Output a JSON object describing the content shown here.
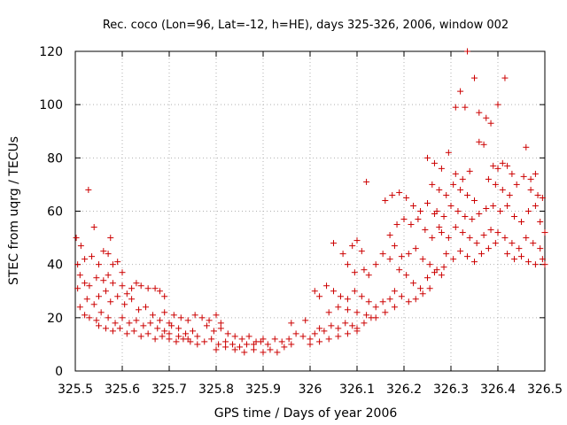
{
  "chart_data": {
    "type": "scatter",
    "title": "Rec. coco (Lon=96, Lat=-12, h=HE), days 325-326, 2006, window 002",
    "xlabel": "GPS time / Days of year 2006",
    "ylabel": "STEC from uqrg / TECUs",
    "xlim": [
      325.5,
      326.5
    ],
    "ylim": [
      0,
      120
    ],
    "x_ticks": [
      325.5,
      325.6,
      325.7,
      325.8,
      325.9,
      326.0,
      326.1,
      326.2,
      326.3,
      326.4,
      326.5
    ],
    "x_tick_labels": [
      "325.5",
      "325.6",
      "325.7",
      "325.8",
      "325.9",
      "326",
      "326.1",
      "326.2",
      "326.3",
      "326.4",
      "326.5"
    ],
    "y_ticks": [
      0,
      20,
      40,
      60,
      80,
      100,
      120
    ],
    "y_tick_labels": [
      "0",
      "20",
      "40",
      "60",
      "80",
      "100",
      "120"
    ],
    "grid": true,
    "marker": "+",
    "color": "#cc0000",
    "series": [
      {
        "points": [
          [
            325.502,
            50.0
          ],
          [
            325.512,
            47.0
          ],
          [
            325.505,
            40.0
          ],
          [
            325.51,
            36.0
          ],
          [
            325.505,
            31.0
          ],
          [
            325.51,
            24.0
          ],
          [
            325.52,
            21.0
          ],
          [
            325.528,
            68.0
          ],
          [
            325.54,
            54.0
          ],
          [
            325.52,
            42.0
          ],
          [
            325.535,
            43.0
          ],
          [
            325.55,
            40.0
          ],
          [
            325.56,
            45.0
          ],
          [
            325.57,
            44.0
          ],
          [
            325.575,
            50.0
          ],
          [
            325.58,
            40.0
          ],
          [
            325.59,
            41.0
          ],
          [
            325.6,
            37.0
          ],
          [
            325.52,
            33.0
          ],
          [
            325.53,
            32.0
          ],
          [
            325.545,
            35.0
          ],
          [
            325.56,
            34.0
          ],
          [
            325.57,
            36.0
          ],
          [
            325.58,
            33.0
          ],
          [
            325.6,
            32.0
          ],
          [
            325.61,
            29.0
          ],
          [
            325.62,
            31.0
          ],
          [
            325.63,
            33.0
          ],
          [
            325.64,
            32.0
          ],
          [
            325.655,
            31.0
          ],
          [
            325.67,
            31.0
          ],
          [
            325.68,
            30.0
          ],
          [
            325.69,
            28.0
          ],
          [
            325.525,
            27.0
          ],
          [
            325.54,
            25.0
          ],
          [
            325.55,
            28.0
          ],
          [
            325.565,
            30.0
          ],
          [
            325.575,
            26.0
          ],
          [
            325.59,
            28.0
          ],
          [
            325.605,
            25.0
          ],
          [
            325.62,
            27.0
          ],
          [
            325.635,
            23.0
          ],
          [
            325.65,
            24.0
          ],
          [
            325.665,
            21.0
          ],
          [
            325.68,
            19.0
          ],
          [
            325.7,
            18.0
          ],
          [
            325.53,
            20.0
          ],
          [
            325.545,
            19.0
          ],
          [
            325.555,
            22.0
          ],
          [
            325.57,
            20.0
          ],
          [
            325.585,
            18.0
          ],
          [
            325.6,
            20.0
          ],
          [
            325.615,
            18.0
          ],
          [
            325.63,
            19.0
          ],
          [
            325.645,
            17.0
          ],
          [
            325.66,
            18.0
          ],
          [
            325.675,
            16.0
          ],
          [
            325.69,
            15.0
          ],
          [
            325.705,
            17.0
          ],
          [
            325.72,
            16.0
          ],
          [
            325.735,
            14.0
          ],
          [
            325.75,
            15.0
          ],
          [
            325.55,
            17.0
          ],
          [
            325.565,
            16.0
          ],
          [
            325.58,
            15.0
          ],
          [
            325.595,
            16.0
          ],
          [
            325.61,
            14.0
          ],
          [
            325.625,
            15.0
          ],
          [
            325.64,
            13.0
          ],
          [
            325.655,
            14.0
          ],
          [
            325.67,
            12.0
          ],
          [
            325.685,
            13.0
          ],
          [
            325.7,
            12.0
          ],
          [
            325.715,
            11.0
          ],
          [
            325.73,
            12.0
          ],
          [
            325.745,
            11.0
          ],
          [
            325.76,
            10.0
          ],
          [
            325.69,
            22.0
          ],
          [
            325.71,
            21.0
          ],
          [
            325.725,
            20.0
          ],
          [
            325.74,
            19.0
          ],
          [
            325.755,
            21.0
          ],
          [
            325.77,
            20.0
          ],
          [
            325.785,
            19.0
          ],
          [
            325.8,
            21.0
          ],
          [
            325.81,
            18.0
          ],
          [
            325.7,
            14.0
          ],
          [
            325.72,
            13.0
          ],
          [
            325.74,
            12.0
          ],
          [
            325.76,
            13.0
          ],
          [
            325.775,
            11.0
          ],
          [
            325.79,
            12.0
          ],
          [
            325.805,
            10.0
          ],
          [
            325.82,
            11.0
          ],
          [
            325.835,
            10.0
          ],
          [
            325.85,
            9.0
          ],
          [
            325.865,
            10.0
          ],
          [
            325.78,
            17.0
          ],
          [
            325.795,
            15.0
          ],
          [
            325.81,
            16.0
          ],
          [
            325.825,
            14.0
          ],
          [
            325.84,
            13.0
          ],
          [
            325.855,
            12.0
          ],
          [
            325.87,
            13.0
          ],
          [
            325.885,
            11.0
          ],
          [
            325.9,
            12.0
          ],
          [
            325.8,
            8.0
          ],
          [
            325.82,
            9.0
          ],
          [
            325.84,
            8.0
          ],
          [
            325.86,
            7.0
          ],
          [
            325.88,
            8.0
          ],
          [
            325.9,
            7.0
          ],
          [
            325.915,
            8.0
          ],
          [
            325.93,
            7.0
          ],
          [
            325.945,
            9.0
          ],
          [
            325.96,
            10.0
          ],
          [
            325.88,
            10.0
          ],
          [
            325.895,
            11.0
          ],
          [
            325.91,
            10.0
          ],
          [
            325.925,
            12.0
          ],
          [
            325.94,
            11.0
          ],
          [
            325.955,
            12.0
          ],
          [
            325.97,
            14.0
          ],
          [
            325.985,
            13.0
          ],
          [
            325.96,
            18.0
          ],
          [
            325.99,
            19.0
          ],
          [
            326.0,
            12.0
          ],
          [
            326.01,
            14.0
          ],
          [
            326.02,
            16.0
          ],
          [
            326.03,
            15.0
          ],
          [
            326.045,
            17.0
          ],
          [
            326.06,
            16.0
          ],
          [
            326.075,
            18.0
          ],
          [
            326.09,
            17.0
          ],
          [
            326.1,
            16.0
          ],
          [
            326.115,
            18.0
          ],
          [
            326.13,
            20.0
          ],
          [
            326.0,
            10.0
          ],
          [
            326.02,
            11.0
          ],
          [
            326.04,
            12.0
          ],
          [
            326.06,
            13.0
          ],
          [
            326.08,
            14.0
          ],
          [
            326.1,
            15.0
          ],
          [
            326.05,
            48.0
          ],
          [
            326.07,
            44.0
          ],
          [
            326.09,
            47.0
          ],
          [
            326.1,
            49.0
          ],
          [
            326.11,
            45.0
          ],
          [
            326.08,
            40.0
          ],
          [
            326.095,
            37.0
          ],
          [
            326.115,
            38.0
          ],
          [
            326.125,
            36.0
          ],
          [
            326.14,
            40.0
          ],
          [
            326.155,
            44.0
          ],
          [
            326.17,
            42.0
          ],
          [
            326.01,
            30.0
          ],
          [
            326.02,
            28.0
          ],
          [
            326.035,
            32.0
          ],
          [
            326.05,
            30.0
          ],
          [
            326.065,
            28.0
          ],
          [
            326.08,
            27.0
          ],
          [
            326.095,
            30.0
          ],
          [
            326.11,
            28.0
          ],
          [
            326.125,
            26.0
          ],
          [
            326.14,
            24.0
          ],
          [
            326.155,
            26.0
          ],
          [
            326.17,
            27.0
          ],
          [
            326.04,
            22.0
          ],
          [
            326.06,
            24.0
          ],
          [
            326.08,
            23.0
          ],
          [
            326.1,
            22.0
          ],
          [
            326.12,
            21.0
          ],
          [
            326.14,
            20.0
          ],
          [
            326.16,
            22.0
          ],
          [
            326.18,
            24.0
          ],
          [
            326.12,
            71.0
          ],
          [
            326.16,
            64.0
          ],
          [
            326.175,
            66.0
          ],
          [
            326.19,
            67.0
          ],
          [
            326.205,
            65.0
          ],
          [
            326.22,
            62.0
          ],
          [
            326.235,
            60.0
          ],
          [
            326.25,
            63.0
          ],
          [
            326.265,
            59.0
          ],
          [
            326.17,
            51.0
          ],
          [
            326.185,
            55.0
          ],
          [
            326.2,
            57.0
          ],
          [
            326.215,
            55.0
          ],
          [
            326.23,
            57.0
          ],
          [
            326.245,
            53.0
          ],
          [
            326.26,
            50.0
          ],
          [
            326.275,
            54.0
          ],
          [
            326.18,
            47.0
          ],
          [
            326.195,
            43.0
          ],
          [
            326.21,
            44.0
          ],
          [
            326.225,
            46.0
          ],
          [
            326.24,
            42.0
          ],
          [
            326.255,
            40.0
          ],
          [
            326.27,
            38.0
          ],
          [
            326.285,
            39.0
          ],
          [
            326.19,
            38.0
          ],
          [
            326.205,
            36.0
          ],
          [
            326.22,
            33.0
          ],
          [
            326.235,
            31.0
          ],
          [
            326.25,
            35.0
          ],
          [
            326.265,
            37.0
          ],
          [
            326.28,
            36.0
          ],
          [
            326.18,
            30.0
          ],
          [
            326.195,
            28.0
          ],
          [
            326.21,
            26.0
          ],
          [
            326.225,
            27.0
          ],
          [
            326.24,
            29.0
          ],
          [
            326.255,
            31.0
          ],
          [
            326.25,
            80.0
          ],
          [
            326.265,
            78.0
          ],
          [
            326.28,
            76.0
          ],
          [
            326.295,
            82.0
          ],
          [
            326.31,
            74.0
          ],
          [
            326.325,
            72.0
          ],
          [
            326.34,
            75.0
          ],
          [
            326.26,
            70.0
          ],
          [
            326.275,
            68.0
          ],
          [
            326.29,
            66.0
          ],
          [
            326.305,
            70.0
          ],
          [
            326.32,
            68.0
          ],
          [
            326.335,
            66.0
          ],
          [
            326.35,
            64.0
          ],
          [
            326.27,
            60.0
          ],
          [
            326.285,
            58.0
          ],
          [
            326.3,
            62.0
          ],
          [
            326.315,
            60.0
          ],
          [
            326.33,
            58.0
          ],
          [
            326.345,
            57.0
          ],
          [
            326.36,
            59.0
          ],
          [
            326.375,
            61.0
          ],
          [
            326.28,
            52.0
          ],
          [
            326.295,
            50.0
          ],
          [
            326.31,
            54.0
          ],
          [
            326.325,
            52.0
          ],
          [
            326.34,
            50.0
          ],
          [
            326.355,
            48.0
          ],
          [
            326.37,
            51.0
          ],
          [
            326.385,
            53.0
          ],
          [
            326.29,
            44.0
          ],
          [
            326.305,
            42.0
          ],
          [
            326.32,
            45.0
          ],
          [
            326.335,
            43.0
          ],
          [
            326.35,
            41.0
          ],
          [
            326.365,
            44.0
          ],
          [
            326.38,
            46.0
          ],
          [
            326.395,
            48.0
          ],
          [
            326.31,
            99.0
          ],
          [
            326.32,
            105.0
          ],
          [
            326.335,
            120.0
          ],
          [
            326.35,
            110.0
          ],
          [
            326.36,
            97.0
          ],
          [
            326.375,
            95.0
          ],
          [
            326.385,
            93.0
          ],
          [
            326.4,
            100.0
          ],
          [
            326.415,
            110.0
          ],
          [
            326.33,
            99.0
          ],
          [
            326.36,
            86.0
          ],
          [
            326.37,
            85.0
          ],
          [
            326.39,
            77.0
          ],
          [
            326.4,
            76.0
          ],
          [
            326.41,
            78.0
          ],
          [
            326.42,
            77.0
          ],
          [
            326.43,
            74.0
          ],
          [
            326.46,
            84.0
          ],
          [
            326.38,
            72.0
          ],
          [
            326.395,
            70.0
          ],
          [
            326.41,
            68.0
          ],
          [
            326.425,
            66.0
          ],
          [
            326.44,
            70.0
          ],
          [
            326.455,
            73.0
          ],
          [
            326.47,
            72.0
          ],
          [
            326.48,
            74.0
          ],
          [
            326.39,
            62.0
          ],
          [
            326.405,
            60.0
          ],
          [
            326.42,
            62.0
          ],
          [
            326.435,
            58.0
          ],
          [
            326.45,
            56.0
          ],
          [
            326.465,
            60.0
          ],
          [
            326.48,
            62.0
          ],
          [
            326.495,
            65.0
          ],
          [
            326.4,
            52.0
          ],
          [
            326.415,
            50.0
          ],
          [
            326.43,
            48.0
          ],
          [
            326.445,
            46.0
          ],
          [
            326.46,
            50.0
          ],
          [
            326.475,
            48.0
          ],
          [
            326.49,
            46.0
          ],
          [
            326.42,
            44.0
          ],
          [
            326.435,
            42.0
          ],
          [
            326.45,
            43.0
          ],
          [
            326.465,
            41.0
          ],
          [
            326.48,
            40.0
          ],
          [
            326.495,
            42.0
          ],
          [
            326.5,
            40.0
          ],
          [
            326.47,
            68.0
          ],
          [
            326.485,
            66.0
          ],
          [
            326.49,
            56.0
          ],
          [
            326.5,
            52.0
          ]
        ]
      }
    ]
  }
}
